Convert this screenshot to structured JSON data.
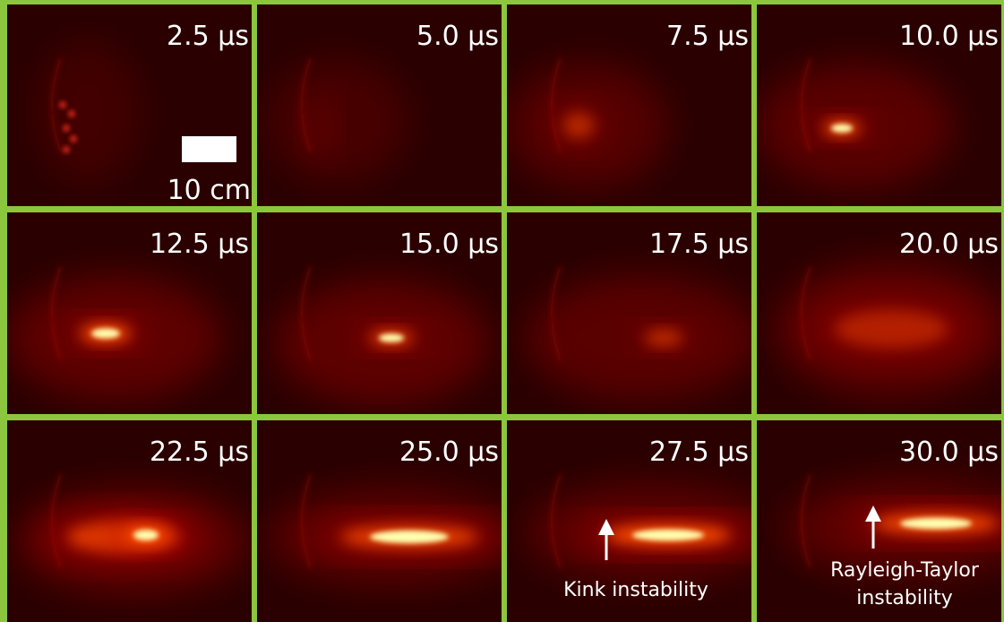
{
  "panels": [
    {
      "time": "2.5 µs"
    },
    {
      "time": "5.0 µs"
    },
    {
      "time": "7.5 µs"
    },
    {
      "time": "10.0 µs"
    },
    {
      "time": "12.5 µs"
    },
    {
      "time": "15.0 µs"
    },
    {
      "time": "17.5 µs"
    },
    {
      "time": "20.0 µs"
    },
    {
      "time": "22.5 µs"
    },
    {
      "time": "25.0 µs"
    },
    {
      "time": "27.5 µs"
    },
    {
      "time": "30.0 µs"
    }
  ],
  "scale_bar": {
    "label": "10 cm"
  },
  "annotations": [
    {
      "lines": [
        "Kink instability"
      ]
    },
    {
      "lines": [
        "Rayleigh-Taylor",
        "instability"
      ]
    }
  ]
}
